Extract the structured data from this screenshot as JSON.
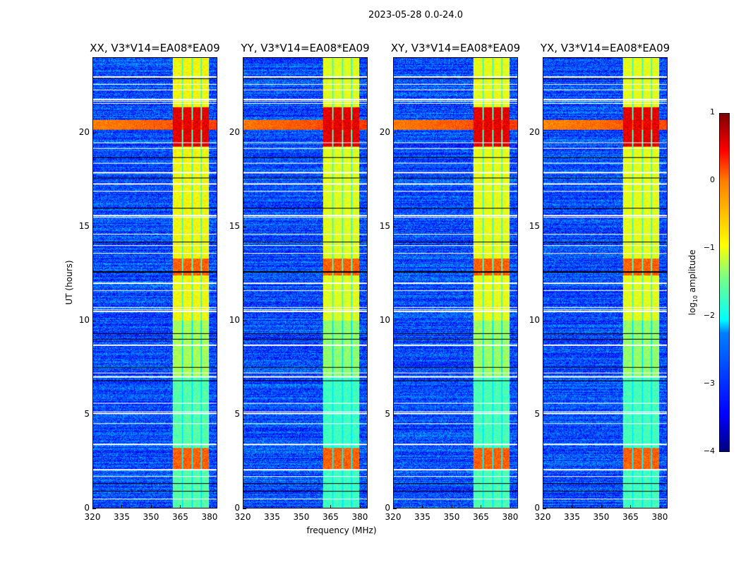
{
  "figure_title": "2023-05-28 0.0-24.0",
  "chart_data": {
    "type": "heatmap",
    "title": "2023-05-28 0.0-24.0",
    "xlabel": "frequency (MHz)",
    "ylabel": "UT (hours)",
    "xlim": [
      320,
      384
    ],
    "ylim": [
      0,
      24
    ],
    "xticks": [
      "320",
      "335",
      "350",
      "365",
      "380"
    ],
    "xtick_values": [
      320,
      335,
      350,
      365,
      380
    ],
    "yticks": [
      "0",
      "5",
      "10",
      "15",
      "20"
    ],
    "ytick_values": [
      0,
      5,
      10,
      15,
      20
    ],
    "panels": [
      {
        "title": "XX, V3*V14=EA08*EA09",
        "rfi_strength": 0.8,
        "band_strength": 1.0
      },
      {
        "title": "YY, V3*V14=EA08*EA09",
        "rfi_strength": 1.0,
        "band_strength": 0.8
      },
      {
        "title": "XY, V3*V14=EA08*EA09",
        "rfi_strength": 0.9,
        "band_strength": 0.9
      },
      {
        "title": "YX, V3*V14=EA08*EA09",
        "rfi_strength": 0.7,
        "band_strength": 0.85
      }
    ],
    "background_log_amplitude": -3.0,
    "strong_band_mhz": [
      361,
      380
    ],
    "strong_band_channel_gaps_mhz": [
      366,
      371,
      376
    ],
    "strong_band_bursts_hours": [
      [
        2.0,
        3.2
      ],
      [
        12.4,
        13.3
      ],
      [
        19.3,
        21.4
      ]
    ],
    "rfi_stripe_hours": [
      20.2,
      20.7
    ],
    "flagged_hours": [
      0.5,
      1.7,
      2.05,
      3.4,
      4.5,
      5.05,
      5.15,
      5.6,
      7.0,
      7.2,
      8.7,
      10.5,
      10.6,
      10.7,
      11.6,
      12.0,
      13.6,
      14.0,
      14.6,
      15.5,
      15.6,
      16.9,
      17.3,
      17.9,
      18.4,
      19.2,
      19.5,
      21.6,
      21.7,
      21.8,
      22.3,
      22.6,
      23.0
    ],
    "zero_hours": [
      0.9,
      1.3,
      6.8,
      7.5,
      9.0,
      9.3,
      12.6,
      14.2,
      16.0,
      17.6,
      18.7,
      22.9
    ],
    "colorbar": {
      "label_prefix": "log",
      "label_sub": "10",
      "label_suffix": " amplitude",
      "clim": [
        -4,
        1
      ],
      "ticks": [
        "−4",
        "−3",
        "−2",
        "−1",
        "0",
        "1"
      ],
      "tick_values": [
        -4,
        -3,
        -2,
        -1,
        0,
        1
      ],
      "colormap": "jet"
    }
  }
}
